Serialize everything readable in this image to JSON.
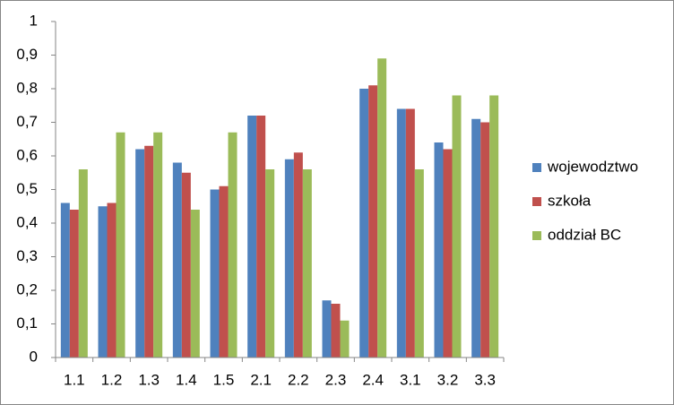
{
  "chart_data": {
    "type": "bar",
    "categories": [
      "1.1",
      "1.2",
      "1.3",
      "1.4",
      "1.5",
      "2.1",
      "2.2",
      "2.3",
      "2.4",
      "3.1",
      "3.2",
      "3.3"
    ],
    "series": [
      {
        "name": "wojewodztwo",
        "color": "#4f81bd",
        "values": [
          0.46,
          0.45,
          0.62,
          0.58,
          0.5,
          0.72,
          0.59,
          0.17,
          0.8,
          0.74,
          0.64,
          0.71
        ]
      },
      {
        "name": "szkoła",
        "color": "#c0504d",
        "values": [
          0.44,
          0.46,
          0.63,
          0.55,
          0.51,
          0.72,
          0.61,
          0.16,
          0.81,
          0.74,
          0.62,
          0.7
        ]
      },
      {
        "name": "oddział BC",
        "color": "#9bbb59",
        "values": [
          0.56,
          0.67,
          0.67,
          0.44,
          0.67,
          0.56,
          0.56,
          0.11,
          0.89,
          0.56,
          0.78,
          0.78
        ]
      }
    ],
    "ylim": [
      0,
      1
    ],
    "yticks": [
      0,
      {
        "value": 0.1,
        "label": "0,1"
      },
      {
        "value": 0.2,
        "label": "0,2"
      },
      {
        "value": 0.3,
        "label": "0,3"
      },
      {
        "value": 0.4,
        "label": "0,4"
      },
      {
        "value": 0.5,
        "label": "0,5"
      },
      {
        "value": 0.6,
        "label": "0,6"
      },
      {
        "value": 0.7,
        "label": "0,7"
      },
      {
        "value": 0.8,
        "label": "0,8"
      },
      {
        "value": 0.9,
        "label": "0,9"
      },
      1
    ],
    "grid": false,
    "legend": "right"
  }
}
